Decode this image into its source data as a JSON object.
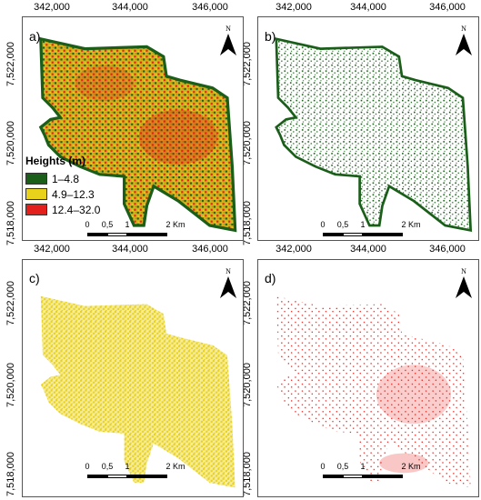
{
  "top_x_ticks": [
    "342,000",
    "344,000",
    "346,000"
  ],
  "mid_x_ticks": [
    "342,000",
    "344,000",
    "346,000"
  ],
  "left_y_ticks": [
    "7,522,000",
    "7,520,000",
    "7,518,000"
  ],
  "panels": [
    {
      "label": "a)",
      "description_colors": [
        "#1a5e1a",
        "#e8d21c",
        "#e3201b"
      ]
    },
    {
      "label": "b)",
      "color": "#1a5e1a"
    },
    {
      "label": "c)",
      "color": "#e8d21c"
    },
    {
      "label": "d)",
      "color": "#e3201b"
    }
  ],
  "legend": {
    "title": "Heights (m)",
    "items": [
      {
        "label": "1–4.8",
        "color": "#1a5e1a"
      },
      {
        "label": "4.9–12.3",
        "color": "#e8d21c"
      },
      {
        "label": "12.4–32.0",
        "color": "#e3201b"
      }
    ]
  },
  "north_arrow": {
    "letter": "N"
  },
  "scalebar": {
    "labels": [
      "0",
      "0,5",
      "1",
      "2 Km"
    ]
  }
}
